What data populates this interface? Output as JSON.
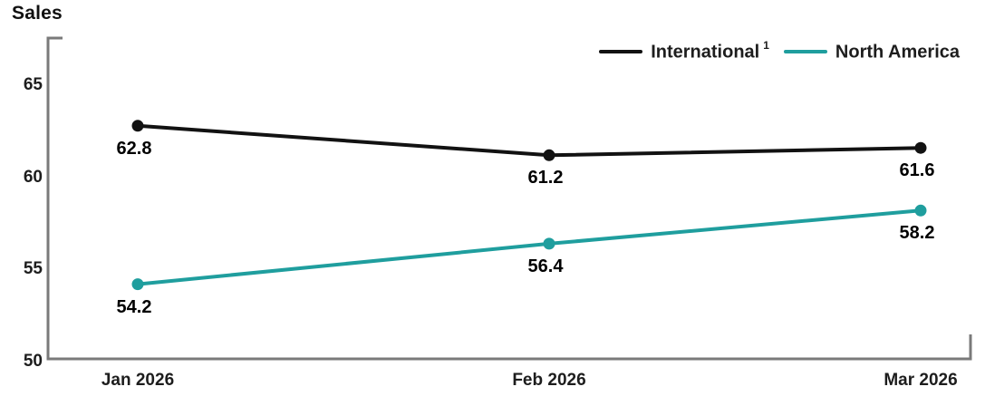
{
  "chart_data": {
    "type": "line",
    "title": "Sales",
    "categories": [
      "Jan 2026",
      "Feb 2026",
      "Mar 2026"
    ],
    "series": [
      {
        "name": "International",
        "footnote_superscript": "1",
        "color": "#121212",
        "values": [
          62.8,
          61.2,
          61.6
        ]
      },
      {
        "name": "North America",
        "footnote_superscript": "",
        "color": "#1F9E9E",
        "values": [
          54.2,
          56.4,
          58.2
        ]
      }
    ],
    "yticks": [
      50,
      55,
      60,
      65
    ],
    "ylim": [
      50,
      67.4
    ],
    "xlabel": "",
    "ylabel": "",
    "grid": false,
    "data_labels_shown": true,
    "legend_position": "top-right",
    "colors": {
      "axis": "#7a7a7a",
      "tick_text": "#1d1d1d",
      "data_label_text": "#000000"
    }
  }
}
